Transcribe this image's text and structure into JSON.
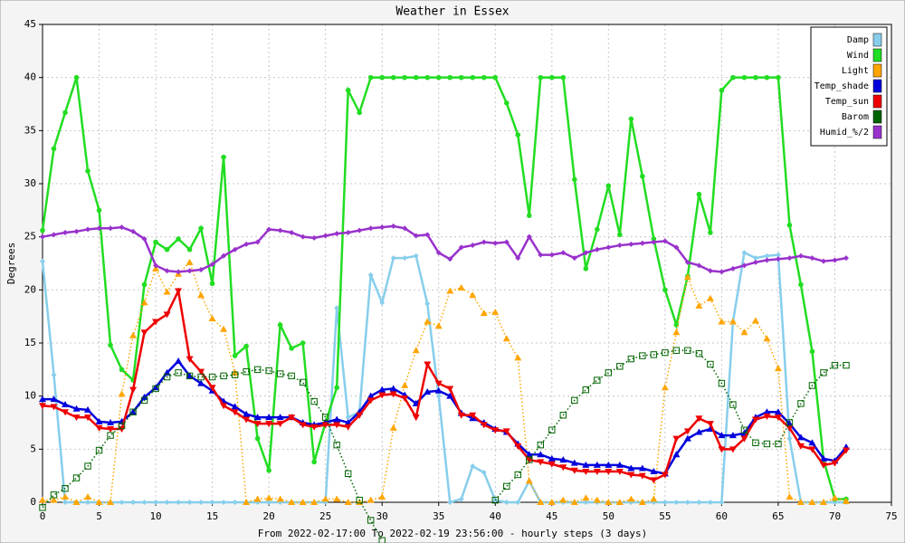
{
  "chart_data": {
    "type": "line",
    "title": "Weather in Essex",
    "y_label": "Degrees",
    "x_label": "From 2022-02-17:00 To 2022-02-19 23:56:00 - hourly steps (3 days)",
    "x": [
      0,
      1,
      2,
      3,
      4,
      5,
      6,
      7,
      8,
      9,
      10,
      11,
      12,
      13,
      14,
      15,
      16,
      17,
      18,
      19,
      20,
      21,
      22,
      23,
      24,
      25,
      26,
      27,
      28,
      29,
      30,
      31,
      32,
      33,
      34,
      35,
      36,
      37,
      38,
      39,
      40,
      41,
      42,
      43,
      44,
      45,
      46,
      47,
      48,
      49,
      50,
      51,
      52,
      53,
      54,
      55,
      56,
      57,
      58,
      59,
      60,
      61,
      62,
      63,
      64,
      65,
      66,
      67,
      68,
      69,
      70,
      71
    ],
    "xlim": [
      0,
      75
    ],
    "xticks": [
      0,
      5,
      10,
      15,
      20,
      25,
      30,
      35,
      40,
      45,
      50,
      55,
      60,
      65,
      70,
      75
    ],
    "ylim": [
      0,
      45
    ],
    "yticks": [
      0,
      5,
      10,
      15,
      20,
      25,
      30,
      35,
      40,
      45
    ],
    "grid": true,
    "legend": "top-right",
    "series": [
      {
        "name": "Damp",
        "color": "#87ceeb",
        "marker": "diamond",
        "line_style": "solid",
        "values": [
          22.7,
          12,
          0,
          0,
          0,
          0,
          0,
          0,
          0,
          0,
          0,
          0,
          0,
          0,
          0,
          0,
          0,
          0,
          0,
          0,
          0,
          0,
          0,
          0,
          0,
          0,
          18.3,
          8,
          8.5,
          21.4,
          18.8,
          23,
          23,
          23.2,
          18.7,
          10,
          0,
          0.3,
          3.4,
          2.8,
          0.2,
          0,
          0,
          2,
          0,
          0,
          0,
          0,
          0,
          0,
          0,
          0,
          0,
          0,
          0,
          0,
          0,
          0,
          0,
          0,
          0,
          17,
          23.5,
          23,
          23.2,
          23.3,
          6,
          0,
          0,
          0,
          0,
          0
        ]
      },
      {
        "name": "Wind",
        "color": "#22dd22",
        "marker": "circle",
        "line_style": "solid",
        "values": [
          25.6,
          33.3,
          36.7,
          40,
          31.2,
          27.5,
          14.8,
          12.5,
          11.5,
          20.5,
          24.5,
          23.8,
          24.8,
          23.8,
          25.8,
          20.6,
          32.5,
          13.8,
          14.7,
          6,
          3,
          16.7,
          14.5,
          15,
          3.8,
          7.5,
          10.8,
          38.8,
          36.7,
          40,
          40,
          40,
          40,
          40,
          40,
          40,
          40,
          40,
          40,
          40,
          40,
          37.6,
          34.6,
          27,
          40,
          40,
          40,
          30.4,
          22,
          25.7,
          29.8,
          25.2,
          36.1,
          30.7,
          24.8,
          20,
          16.7,
          21.3,
          29,
          25.4,
          38.8,
          40,
          40,
          40,
          40,
          40,
          26.1,
          20.5,
          14.2,
          4,
          0.3,
          0.3
        ]
      },
      {
        "name": "Light",
        "color": "#ffa500",
        "marker": "triangle-up",
        "line_style": "dotted",
        "values": [
          0.2,
          0.2,
          0.5,
          0,
          0.5,
          0,
          0,
          10.2,
          15.7,
          18.8,
          22,
          19.8,
          21.5,
          22.6,
          19.5,
          17.3,
          16.3,
          12.2,
          0,
          0.3,
          0.4,
          0.3,
          0,
          0,
          0,
          0.3,
          0.3,
          0,
          0,
          0.2,
          0.5,
          7,
          11,
          14.3,
          17,
          16.6,
          19.9,
          20.2,
          19.5,
          17.8,
          17.9,
          15.4,
          13.6,
          2,
          0,
          0,
          0.2,
          0,
          0.4,
          0.2,
          0,
          0,
          0.3,
          0,
          0.3,
          10.8,
          16,
          21.2,
          18.5,
          19.2,
          17,
          17,
          16,
          17.1,
          15.4,
          12.6,
          0.5,
          0,
          0,
          0,
          0.4,
          0.1
        ]
      },
      {
        "name": "Temp_shade",
        "color": "#0000dd",
        "marker": "triangle-up",
        "line_style": "solid",
        "values": [
          9.7,
          9.7,
          9.2,
          8.8,
          8.7,
          7.6,
          7.5,
          7.6,
          8.5,
          9.9,
          10.8,
          12.2,
          13.3,
          11.9,
          11.2,
          10.5,
          9.5,
          9,
          8.3,
          8,
          8,
          8,
          8,
          7.5,
          7.3,
          7.5,
          7.8,
          7.5,
          8.5,
          10,
          10.6,
          10.7,
          10.1,
          9.3,
          10.4,
          10.5,
          10,
          8.4,
          7.9,
          7.5,
          6.9,
          6.6,
          5.5,
          4.5,
          4.5,
          4.1,
          4,
          3.7,
          3.5,
          3.5,
          3.5,
          3.5,
          3.2,
          3.2,
          2.9,
          2.7,
          4.5,
          6,
          6.6,
          6.9,
          6.3,
          6.3,
          6.5,
          8,
          8.5,
          8.5,
          7.4,
          6.1,
          5.6,
          4.1,
          3.9,
          5.2
        ]
      },
      {
        "name": "Temp_sun",
        "color": "#ee0000",
        "marker": "triangle-down",
        "line_style": "solid",
        "values": [
          9.1,
          9,
          8.5,
          8,
          8,
          7,
          6.9,
          6.9,
          10.6,
          16,
          17,
          17.7,
          19.9,
          13.5,
          12.3,
          10.8,
          9.1,
          8.5,
          7.8,
          7.4,
          7.4,
          7.4,
          8,
          7.3,
          7.1,
          7.3,
          7.3,
          7.1,
          8.2,
          9.6,
          10.1,
          10.2,
          9.8,
          8,
          13,
          11.2,
          10.7,
          8.2,
          8.2,
          7.3,
          6.8,
          6.7,
          5.3,
          4,
          3.8,
          3.6,
          3.3,
          3,
          2.9,
          2.9,
          2.9,
          2.9,
          2.6,
          2.5,
          2.1,
          2.6,
          6,
          6.7,
          7.9,
          7.4,
          5,
          5,
          6,
          7.8,
          8.1,
          8,
          7,
          5.3,
          5,
          3.5,
          3.7,
          4.9
        ]
      },
      {
        "name": "Barom",
        "color": "#006400",
        "marker": "square",
        "line_style": "dotted",
        "values": [
          -0.5,
          0.7,
          1.3,
          2.3,
          3.4,
          4.9,
          6.3,
          7.2,
          8.5,
          9.6,
          10.7,
          11.8,
          12.2,
          11.9,
          11.8,
          11.8,
          11.9,
          12,
          12.3,
          12.5,
          12.4,
          12.1,
          11.9,
          11.3,
          9.5,
          8,
          5.4,
          2.7,
          0.2,
          -1.7,
          -3.6,
          null,
          null,
          null,
          null,
          null,
          null,
          null,
          null,
          null,
          0.2,
          1.5,
          2.6,
          4,
          5.4,
          6.8,
          8.2,
          9.6,
          10.6,
          11.5,
          12.2,
          12.8,
          13.5,
          13.8,
          13.9,
          14.1,
          14.3,
          14.3,
          14,
          13,
          11.2,
          9.2,
          6.8,
          5.6,
          5.5,
          5.5,
          7.5,
          9.3,
          11,
          12.2,
          12.9,
          12.9
        ]
      },
      {
        "name": "Humid_%/2",
        "color": "#9932cc",
        "marker": "diamond",
        "line_style": "solid",
        "values": [
          25,
          25.2,
          25.4,
          25.5,
          25.7,
          25.8,
          25.8,
          25.9,
          25.5,
          24.8,
          22.3,
          21.8,
          21.7,
          21.8,
          21.9,
          22.4,
          23.2,
          23.8,
          24.3,
          24.5,
          25.7,
          25.6,
          25.4,
          25,
          24.9,
          25.1,
          25.3,
          25.4,
          25.6,
          25.8,
          25.9,
          26,
          25.8,
          25.1,
          25.2,
          23.5,
          22.9,
          24,
          24.2,
          24.5,
          24.4,
          24.5,
          23,
          25,
          23.3,
          23.3,
          23.5,
          23,
          23.5,
          23.8,
          24,
          24.2,
          24.3,
          24.4,
          24.5,
          24.6,
          24,
          22.6,
          22.3,
          21.8,
          21.7,
          22,
          22.3,
          22.6,
          22.8,
          22.9,
          23,
          23.2,
          23,
          22.7,
          22.8,
          23
        ]
      }
    ]
  }
}
